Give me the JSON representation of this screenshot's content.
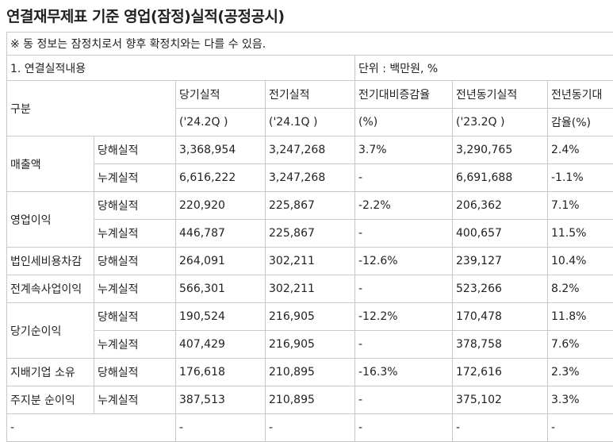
{
  "title": "연결재무제표 기준 영업(잠정)실적(공정공시)",
  "notice": "※ 동 정보는 잠정치로서 향후 확정치와는 다를 수 있음.",
  "section_label": "1. 연결실적내용",
  "unit_label": "단위 : 백만원, %",
  "header": {
    "category": "구분",
    "current": "당기실적",
    "current_period": "('24.2Q )",
    "previous": "전기실적",
    "previous_period": "('24.1Q )",
    "qoq_change": "전기대비증감율",
    "qoq_unit": "(%)",
    "yoy": "전년동기실적",
    "yoy_period": "('23.2Q )",
    "yoy_change_1": "전년동기대",
    "yoy_change_2": "감율(%)"
  },
  "groups": [
    {
      "name_1": "매출액",
      "name_2": "",
      "rows": [
        {
          "type": "당해실적",
          "current": "3,368,954",
          "previous": "3,247,268",
          "qoq": "3.7%",
          "yoy": "3,290,765",
          "yoy_change": "2.4%"
        },
        {
          "type": "누계실적",
          "current": "6,616,222",
          "previous": "3,247,268",
          "qoq": "-",
          "yoy": "6,691,688",
          "yoy_change": "-1.1%"
        }
      ]
    },
    {
      "name_1": "영업이익",
      "name_2": "",
      "rows": [
        {
          "type": "당해실적",
          "current": "220,920",
          "previous": "225,867",
          "qoq": "-2.2%",
          "yoy": "206,362",
          "yoy_change": "7.1%"
        },
        {
          "type": "누계실적",
          "current": "446,787",
          "previous": "225,867",
          "qoq": "-",
          "yoy": "400,657",
          "yoy_change": "11.5%"
        }
      ]
    },
    {
      "name_1": "법인세비용차감",
      "name_2": "전계속사업이익",
      "rows": [
        {
          "type": "당해실적",
          "current": "264,091",
          "previous": "302,211",
          "qoq": "-12.6%",
          "yoy": "239,127",
          "yoy_change": "10.4%"
        },
        {
          "type": "누계실적",
          "current": "566,301",
          "previous": "302,211",
          "qoq": "-",
          "yoy": "523,266",
          "yoy_change": "8.2%"
        }
      ]
    },
    {
      "name_1": "당기순이익",
      "name_2": "",
      "rows": [
        {
          "type": "당해실적",
          "current": "190,524",
          "previous": "216,905",
          "qoq": "-12.2%",
          "yoy": "170,478",
          "yoy_change": "11.8%"
        },
        {
          "type": "누계실적",
          "current": "407,429",
          "previous": "216,905",
          "qoq": "-",
          "yoy": "378,758",
          "yoy_change": "7.6%"
        }
      ]
    },
    {
      "name_1": "지배기업 소유",
      "name_2": "주지분 순이익",
      "rows": [
        {
          "type": "당해실적",
          "current": "176,618",
          "previous": "210,895",
          "qoq": "-16.3%",
          "yoy": "172,616",
          "yoy_change": "2.3%"
        },
        {
          "type": "누계실적",
          "current": "387,513",
          "previous": "210,895",
          "qoq": "-",
          "yoy": "375,102",
          "yoy_change": "3.3%"
        }
      ]
    }
  ],
  "empty_row": [
    "-",
    "-",
    "-",
    "-",
    "-",
    "-"
  ]
}
